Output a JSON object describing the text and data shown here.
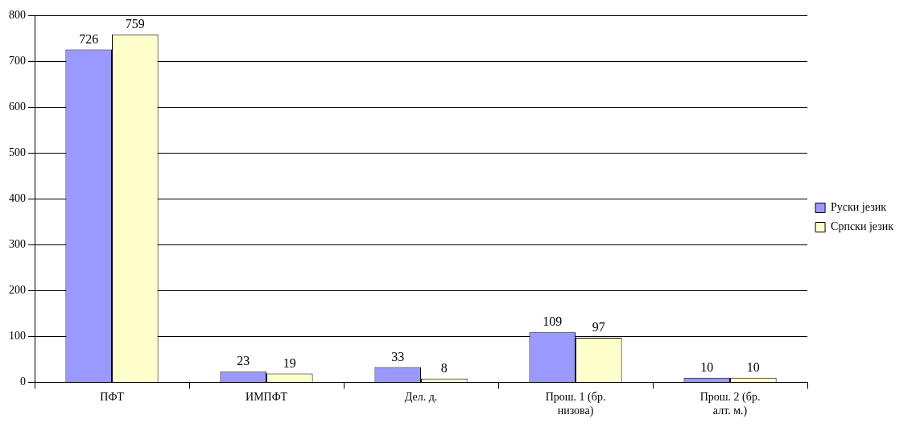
{
  "chart_data": {
    "type": "bar",
    "categories": [
      "ПФТ",
      "ИМПФТ",
      "Дел. д.",
      "Прош. 1 (бр. низова)",
      "Прош. 2 (бр. алт. м.)"
    ],
    "series": [
      {
        "name": "Руски језик",
        "color": "#9999ff",
        "values": [
          726,
          23,
          33,
          109,
          10
        ]
      },
      {
        "name": "Српски језик",
        "color": "#ffffcc",
        "values": [
          759,
          19,
          8,
          97,
          10
        ]
      }
    ],
    "ylim": [
      0,
      800
    ],
    "yticks": [
      0,
      100,
      200,
      300,
      400,
      500,
      600,
      700,
      800
    ],
    "grid": "y",
    "legend": "right",
    "data_labels": true
  }
}
